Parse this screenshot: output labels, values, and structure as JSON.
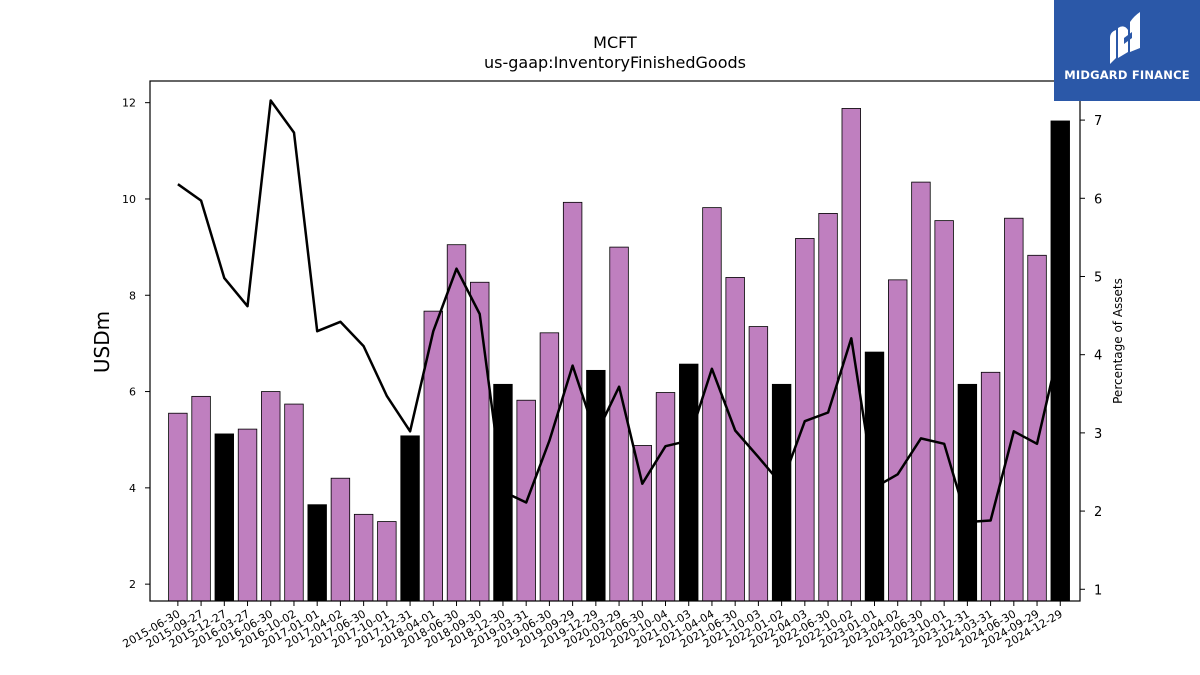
{
  "chart_data": {
    "type": "bar",
    "title": "MCFT",
    "subtitle": "us-gaap:InventoryFinishedGoods",
    "ylabel": "USDm",
    "y2label": "Percentage of Assets",
    "ylim": [
      1.65,
      12.45
    ],
    "y2lim": [
      0.85,
      7.5
    ],
    "yticks": [
      2,
      4,
      6,
      8,
      10,
      12
    ],
    "y2ticks": [
      1,
      2,
      3,
      4,
      5,
      6,
      7
    ],
    "categories": [
      "2015-06-30",
      "2015-09-27",
      "2015-12-27",
      "2016-03-27",
      "2016-06-30",
      "2016-10-02",
      "2017-01-01",
      "2017-04-02",
      "2017-06-30",
      "2017-10-01",
      "2017-12-31",
      "2018-04-01",
      "2018-06-30",
      "2018-09-30",
      "2018-12-30",
      "2019-03-31",
      "2019-06-30",
      "2019-09-29",
      "2019-12-29",
      "2020-03-29",
      "2020-06-30",
      "2020-10-04",
      "2021-01-03",
      "2021-04-04",
      "2021-06-30",
      "2021-10-03",
      "2022-01-02",
      "2022-04-03",
      "2022-06-30",
      "2022-10-02",
      "2023-01-01",
      "2023-04-02",
      "2023-06-30",
      "2023-10-01",
      "2023-12-31",
      "2024-03-31",
      "2024-06-30",
      "2024-09-29",
      "2024-12-29"
    ],
    "series": [
      {
        "type": "bar",
        "values": [
          5.55,
          5.9,
          5.12,
          5.22,
          6.0,
          5.74,
          3.65,
          4.2,
          3.45,
          3.3,
          5.08,
          7.67,
          9.05,
          8.27,
          6.15,
          5.82,
          7.22,
          9.93,
          6.44,
          9.0,
          4.88,
          5.98,
          6.57,
          9.82,
          8.37,
          7.35,
          6.15,
          9.18,
          9.7,
          11.88,
          6.82,
          8.32,
          10.35,
          9.55,
          6.15,
          6.4,
          9.6,
          8.83,
          11.62
        ],
        "highlight": [
          false,
          false,
          true,
          false,
          false,
          false,
          true,
          false,
          false,
          false,
          true,
          false,
          false,
          false,
          true,
          false,
          false,
          false,
          true,
          false,
          false,
          false,
          true,
          false,
          false,
          false,
          true,
          false,
          false,
          false,
          true,
          false,
          false,
          false,
          true,
          false,
          false,
          false,
          true
        ],
        "color": "#bf7fbf",
        "highlight_color": "#000000"
      },
      {
        "type": "line",
        "axis": "right",
        "values": [
          6.18,
          5.97,
          4.98,
          4.62,
          7.25,
          6.84,
          4.3,
          4.42,
          4.11,
          3.47,
          3.02,
          4.3,
          5.1,
          4.52,
          2.25,
          2.11,
          2.9,
          3.86,
          2.97,
          3.59,
          2.35,
          2.83,
          2.9,
          3.82,
          3.03,
          2.69,
          2.34,
          3.15,
          3.26,
          4.21,
          2.3,
          2.47,
          2.93,
          2.86,
          1.86,
          1.88,
          3.02,
          2.86,
          4.15
        ],
        "color": "#000000"
      }
    ],
    "grid": false,
    "legend": "none"
  },
  "logo": {
    "text": "MIDGARD FINANCE",
    "bg_color": "#2b58a8"
  }
}
